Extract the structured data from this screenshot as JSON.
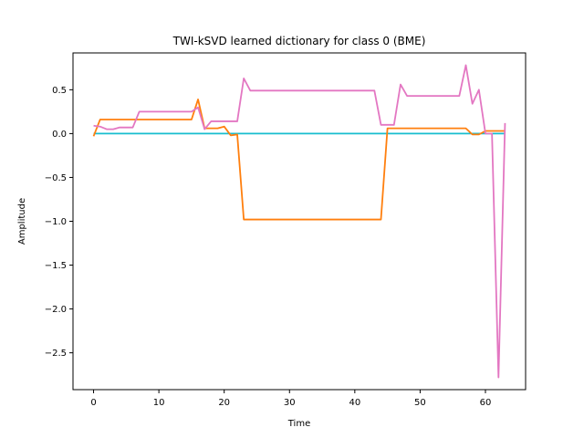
{
  "chart_data": {
    "type": "line",
    "title": "TWI-kSVD learned dictionary for class 0 (BME)",
    "xlabel": "Time",
    "ylabel": "Amplitude",
    "xlim": [
      -3.15,
      66.15
    ],
    "ylim": [
      -2.92,
      0.92
    ],
    "xticks": [
      0,
      10,
      20,
      30,
      40,
      50,
      60
    ],
    "yticks": [
      -2.5,
      -2.0,
      -1.5,
      -1.0,
      -0.5,
      0.0,
      0.5
    ],
    "ytick_labels": [
      "−2.5",
      "−2.0",
      "−1.5",
      "−1.0",
      "−0.5",
      "0.0",
      "0.5"
    ],
    "grid": false,
    "series": [
      {
        "color": "#17becf",
        "values": [
          0,
          0,
          0,
          0,
          0,
          0,
          0,
          0,
          0,
          0,
          0,
          0,
          0,
          0,
          0,
          0,
          0,
          0,
          0,
          0,
          0,
          0,
          0,
          0,
          0,
          0,
          0,
          0,
          0,
          0,
          0,
          0,
          0,
          0,
          0,
          0,
          0,
          0,
          0,
          0,
          0,
          0,
          0,
          0,
          0,
          0,
          0,
          0,
          0,
          0,
          0,
          0,
          0,
          0,
          0,
          0,
          0,
          0,
          0,
          0,
          0,
          0,
          0,
          0
        ]
      },
      {
        "color": "#ff7f0e",
        "values": [
          -0.03,
          0.16,
          0.16,
          0.16,
          0.16,
          0.16,
          0.16,
          0.16,
          0.16,
          0.16,
          0.16,
          0.16,
          0.16,
          0.16,
          0.16,
          0.16,
          0.39,
          0.06,
          0.06,
          0.06,
          0.08,
          -0.02,
          -0.01,
          -0.98,
          -0.98,
          -0.98,
          -0.98,
          -0.98,
          -0.98,
          -0.98,
          -0.98,
          -0.98,
          -0.98,
          -0.98,
          -0.98,
          -0.98,
          -0.98,
          -0.98,
          -0.98,
          -0.98,
          -0.98,
          -0.98,
          -0.98,
          -0.98,
          -0.98,
          0.06,
          0.06,
          0.06,
          0.06,
          0.06,
          0.06,
          0.06,
          0.06,
          0.06,
          0.06,
          0.06,
          0.06,
          0.06,
          -0.01,
          -0.01,
          0.03,
          0.03,
          0.03,
          0.03
        ]
      },
      {
        "color": "#e377c2",
        "values": [
          0.09,
          0.08,
          0.05,
          0.05,
          0.07,
          0.07,
          0.07,
          0.25,
          0.25,
          0.25,
          0.25,
          0.25,
          0.25,
          0.25,
          0.25,
          0.25,
          0.3,
          0.05,
          0.14,
          0.14,
          0.14,
          0.14,
          0.14,
          0.63,
          0.49,
          0.49,
          0.49,
          0.49,
          0.49,
          0.49,
          0.49,
          0.49,
          0.49,
          0.49,
          0.49,
          0.49,
          0.49,
          0.49,
          0.49,
          0.49,
          0.49,
          0.49,
          0.49,
          0.49,
          0.1,
          0.1,
          0.1,
          0.56,
          0.43,
          0.43,
          0.43,
          0.43,
          0.43,
          0.43,
          0.43,
          0.43,
          0.43,
          0.78,
          0.34,
          0.5,
          0.0,
          0.0,
          -2.78,
          0.12
        ]
      }
    ]
  }
}
